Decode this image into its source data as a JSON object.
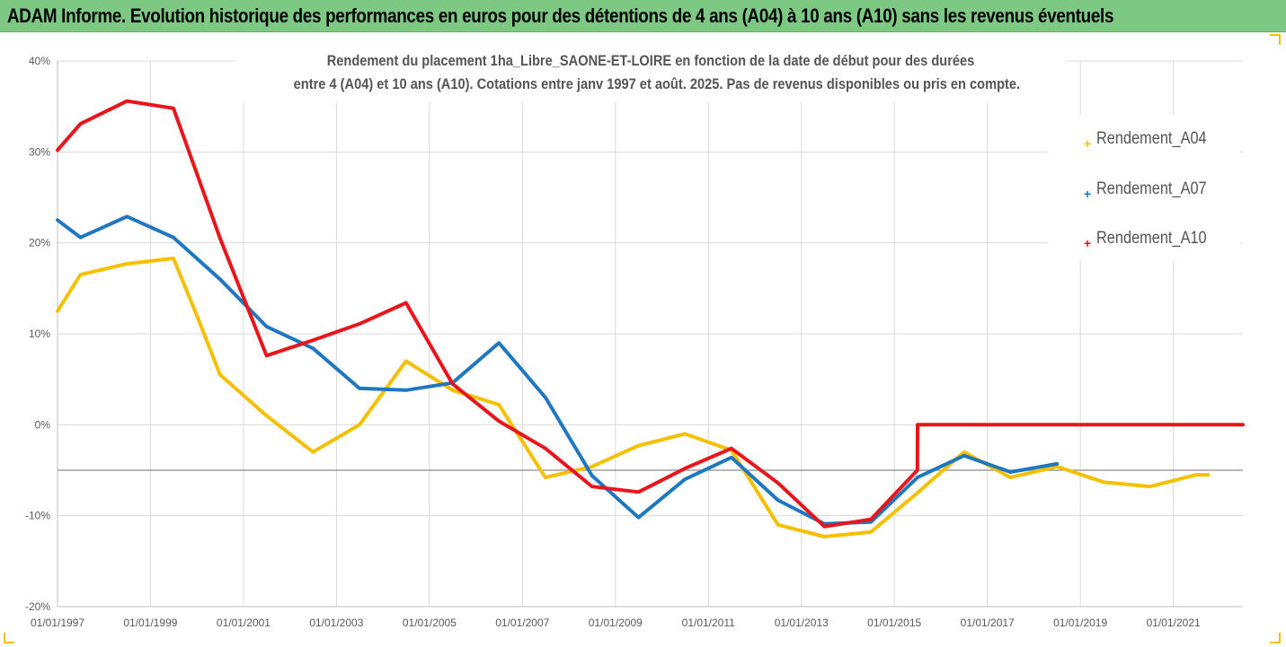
{
  "header": {
    "title": "ADAM Informe. Evolution historique des performances en euros pour des détentions de 4 ans (A04) à 10 ans (A10) sans les revenus éventuels"
  },
  "chart_data": {
    "type": "line",
    "title_line1": "Rendement du placement 1ha_Libre_SAONE-ET-LOIRE en fonction de la date de début pour des durées",
    "title_line2": "entre 4 (A04) et 10 ans (A10). Cotations entre janv 1997 et août. 2025. Pas de revenus disponibles ou pris en compte.",
    "xlabel": "",
    "ylabel": "",
    "ylim": [
      -20,
      40
    ],
    "xlim": [
      "1997-01-01",
      "2022-07-01"
    ],
    "y_ticks": [
      {
        "value": 40,
        "label": "40%"
      },
      {
        "value": 30,
        "label": "30%"
      },
      {
        "value": 20,
        "label": "20%"
      },
      {
        "value": 10,
        "label": "10%"
      },
      {
        "value": 0,
        "label": "0%"
      },
      {
        "value": -10,
        "label": "-10%"
      },
      {
        "value": -20,
        "label": "-20%"
      }
    ],
    "x_ticks": [
      {
        "date": "1997-01-01",
        "label": "01/01/1997"
      },
      {
        "date": "1999-01-01",
        "label": "01/01/1999"
      },
      {
        "date": "2001-01-01",
        "label": "01/01/2001"
      },
      {
        "date": "2003-01-01",
        "label": "01/01/2003"
      },
      {
        "date": "2005-01-01",
        "label": "01/01/2005"
      },
      {
        "date": "2007-01-01",
        "label": "01/01/2007"
      },
      {
        "date": "2009-01-01",
        "label": "01/01/2009"
      },
      {
        "date": "2011-01-01",
        "label": "01/01/2011"
      },
      {
        "date": "2013-01-01",
        "label": "01/01/2013"
      },
      {
        "date": "2015-01-01",
        "label": "01/01/2015"
      },
      {
        "date": "2017-01-01",
        "label": "01/01/2017"
      },
      {
        "date": "2019-01-01",
        "label": "01/01/2019"
      },
      {
        "date": "2021-01-01",
        "label": "01/01/2021"
      }
    ],
    "reference_line_y": -5,
    "grid": true,
    "legend_position": "right",
    "series": [
      {
        "name": "Rendement_A04",
        "color": "#f5c000",
        "points": [
          [
            "1997-01-01",
            12.5
          ],
          [
            "1997-07-01",
            16.5
          ],
          [
            "1998-07-01",
            17.7
          ],
          [
            "1999-07-01",
            18.3
          ],
          [
            "2000-01-01",
            12.0
          ],
          [
            "2000-07-01",
            5.5
          ],
          [
            "2001-07-01",
            1.0
          ],
          [
            "2002-07-01",
            -3.0
          ],
          [
            "2003-07-01",
            0.0
          ],
          [
            "2004-07-01",
            7.0
          ],
          [
            "2005-07-01",
            3.8
          ],
          [
            "2006-07-01",
            2.2
          ],
          [
            "2007-07-01",
            -5.8
          ],
          [
            "2008-07-01",
            -4.6
          ],
          [
            "2009-07-01",
            -2.3
          ],
          [
            "2010-07-01",
            -1.0
          ],
          [
            "2011-07-01",
            -2.8
          ],
          [
            "2012-07-01",
            -11.0
          ],
          [
            "2013-07-01",
            -12.3
          ],
          [
            "2014-07-01",
            -11.8
          ],
          [
            "2015-07-01",
            -7.5
          ],
          [
            "2016-07-01",
            -3.0
          ],
          [
            "2017-07-01",
            -5.8
          ],
          [
            "2018-07-01",
            -4.6
          ],
          [
            "2019-07-01",
            -6.3
          ],
          [
            "2020-07-01",
            -6.8
          ],
          [
            "2021-07-01",
            -5.5
          ],
          [
            "2021-10-01",
            -5.5
          ]
        ]
      },
      {
        "name": "Rendement_A07",
        "color": "#1f77c0",
        "points": [
          [
            "1997-01-01",
            22.5
          ],
          [
            "1997-07-01",
            20.6
          ],
          [
            "1998-07-01",
            22.9
          ],
          [
            "1999-07-01",
            20.6
          ],
          [
            "2000-07-01",
            16.0
          ],
          [
            "2001-07-01",
            10.8
          ],
          [
            "2002-07-01",
            8.4
          ],
          [
            "2003-07-01",
            4.0
          ],
          [
            "2004-07-01",
            3.8
          ],
          [
            "2005-07-01",
            4.6
          ],
          [
            "2006-07-01",
            9.0
          ],
          [
            "2007-07-01",
            3.0
          ],
          [
            "2008-07-01",
            -5.6
          ],
          [
            "2009-07-01",
            -10.2
          ],
          [
            "2010-07-01",
            -6.0
          ],
          [
            "2011-07-01",
            -3.6
          ],
          [
            "2012-07-01",
            -8.3
          ],
          [
            "2013-07-01",
            -10.9
          ],
          [
            "2014-07-01",
            -10.7
          ],
          [
            "2015-07-01",
            -5.8
          ],
          [
            "2016-07-01",
            -3.4
          ],
          [
            "2017-07-01",
            -5.2
          ],
          [
            "2018-07-01",
            -4.3
          ]
        ]
      },
      {
        "name": "Rendement_A10",
        "color": "#e8151b",
        "points": [
          [
            "1997-01-01",
            30.2
          ],
          [
            "1997-07-01",
            33.1
          ],
          [
            "1998-07-01",
            35.6
          ],
          [
            "1999-07-01",
            34.8
          ],
          [
            "2000-07-01",
            20.5
          ],
          [
            "2001-07-01",
            7.6
          ],
          [
            "2002-07-01",
            9.3
          ],
          [
            "2003-07-01",
            11.1
          ],
          [
            "2004-07-01",
            13.4
          ],
          [
            "2005-07-01",
            4.5
          ],
          [
            "2006-07-01",
            0.4
          ],
          [
            "2007-07-01",
            -2.6
          ],
          [
            "2008-07-01",
            -6.8
          ],
          [
            "2009-07-01",
            -7.4
          ],
          [
            "2010-07-01",
            -4.8
          ],
          [
            "2011-07-01",
            -2.6
          ],
          [
            "2012-07-01",
            -6.4
          ],
          [
            "2013-07-01",
            -11.2
          ],
          [
            "2014-07-01",
            -10.4
          ],
          [
            "2015-07-01",
            -5.0
          ],
          [
            "2015-07-02",
            0.0
          ],
          [
            "2022-07-01",
            0.0
          ]
        ]
      }
    ]
  }
}
